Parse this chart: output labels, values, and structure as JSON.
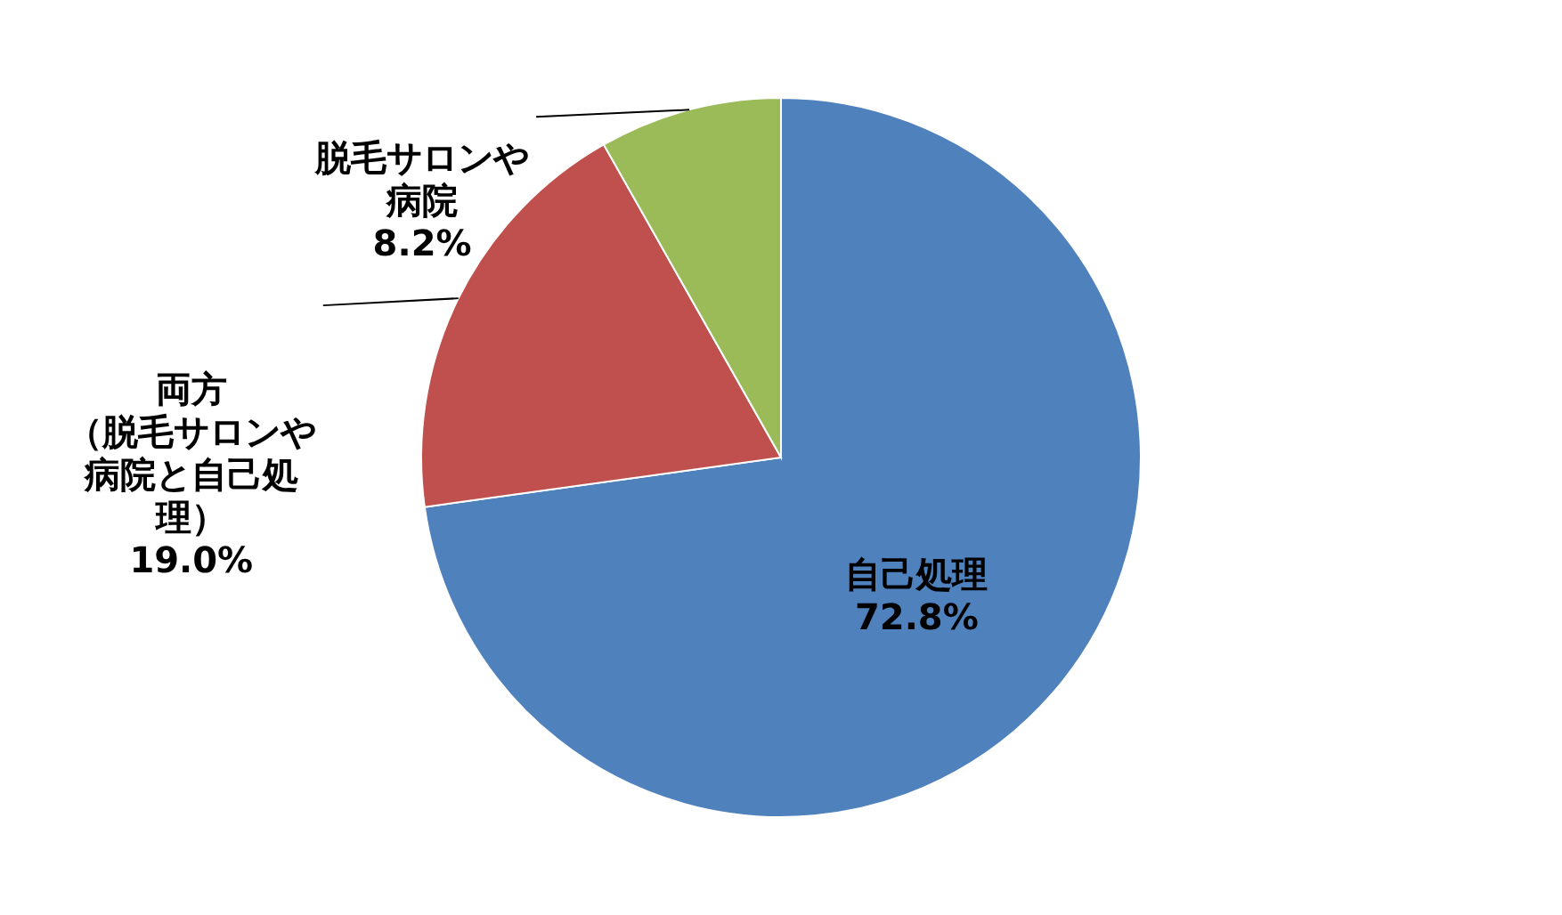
{
  "chart_data": {
    "type": "pie",
    "categories": [
      "自己処理",
      "両方（脱毛サロンや病院と自己処理）",
      "脱毛サロンや病院"
    ],
    "values": [
      72.8,
      19.0,
      8.2
    ],
    "value_labels": [
      "72.8%",
      "19.0%",
      "8.2%"
    ],
    "colors": [
      "#4f81bd",
      "#c0504d",
      "#9bbb59"
    ]
  }
}
